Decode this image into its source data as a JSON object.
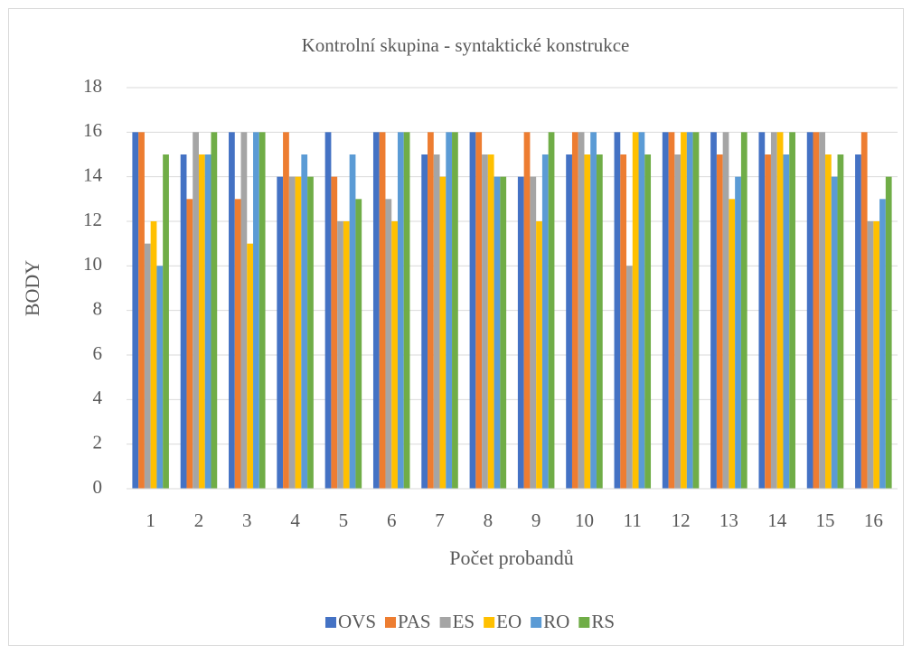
{
  "chart_data": {
    "type": "bar",
    "title": "Kontrolní skupina - syntaktické konstrukce",
    "xlabel": "Počet probandů",
    "ylabel": "BODY",
    "categories": [
      "1",
      "2",
      "3",
      "4",
      "5",
      "6",
      "7",
      "8",
      "9",
      "10",
      "11",
      "12",
      "13",
      "14",
      "15",
      "16"
    ],
    "series": [
      {
        "name": "OVS",
        "color": "#4472c4",
        "values": [
          16,
          15,
          16,
          14,
          16,
          16,
          15,
          16,
          14,
          15,
          16,
          16,
          16,
          16,
          16,
          15
        ]
      },
      {
        "name": "PAS",
        "color": "#ed7d31",
        "values": [
          16,
          13,
          13,
          16,
          14,
          16,
          16,
          16,
          16,
          16,
          15,
          16,
          15,
          15,
          16,
          16
        ]
      },
      {
        "name": "ES",
        "color": "#a5a5a5",
        "values": [
          11,
          16,
          16,
          14,
          12,
          13,
          15,
          15,
          14,
          16,
          10,
          15,
          16,
          16,
          16,
          12
        ]
      },
      {
        "name": "EO",
        "color": "#ffc000",
        "values": [
          12,
          15,
          11,
          14,
          12,
          12,
          14,
          15,
          12,
          15,
          16,
          16,
          13,
          16,
          15,
          12
        ]
      },
      {
        "name": "RO",
        "color": "#5b9bd5",
        "values": [
          10,
          15,
          16,
          15,
          15,
          16,
          16,
          14,
          15,
          16,
          16,
          16,
          14,
          15,
          14,
          13
        ]
      },
      {
        "name": "RS",
        "color": "#70ad47",
        "values": [
          15,
          16,
          16,
          14,
          13,
          16,
          16,
          14,
          16,
          15,
          15,
          16,
          16,
          16,
          15,
          14
        ]
      }
    ],
    "ylim": [
      0,
      18
    ],
    "yticks": [
      0,
      2,
      4,
      6,
      8,
      10,
      12,
      14,
      16,
      18
    ],
    "grid": true,
    "legend": "bottom"
  }
}
